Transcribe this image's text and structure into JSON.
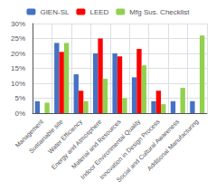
{
  "chart_data": {
    "type": "bar",
    "categories": [
      "Management",
      "Sustainable site",
      "Water Efficiency",
      "Energy and Atmosphere",
      "Material and Resources",
      "Indoor Environmental Quality",
      "Innovation in Design Process",
      "Social and Cultural Awareness",
      "Additional Manufacturing"
    ],
    "series": [
      {
        "name": "GIEN-SL",
        "color": "#4472C4",
        "values": [
          4,
          23.5,
          13,
          20,
          20,
          12,
          4,
          4,
          4
        ]
      },
      {
        "name": "LEED",
        "color": "#FF0000",
        "values": [
          0,
          20.5,
          7.5,
          25,
          19,
          21.5,
          7.5,
          0,
          0
        ]
      },
      {
        "name": "Mfg Sus. Checklist",
        "color": "#92D050",
        "values": [
          3.5,
          23.5,
          4,
          11.5,
          5,
          16,
          3,
          8.5,
          26
        ]
      }
    ],
    "ylim": [
      0,
      30
    ],
    "yticks": [
      {
        "value": 0,
        "label": "0%"
      },
      {
        "value": 5,
        "label": "5%"
      },
      {
        "value": 10,
        "label": "10%"
      },
      {
        "value": 15,
        "label": "15%"
      },
      {
        "value": 20,
        "label": "20%"
      },
      {
        "value": 25,
        "label": "25%"
      },
      {
        "value": 30,
        "label": "30%"
      }
    ],
    "grid": true,
    "legend": "top"
  }
}
